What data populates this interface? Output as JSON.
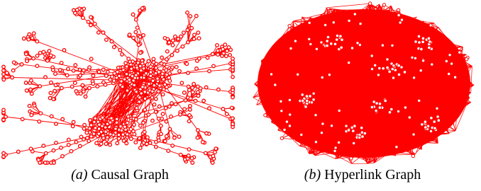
{
  "panels": [
    {
      "label": "(a)",
      "caption": "Causal Graph"
    },
    {
      "label": "(b)",
      "caption": "Hyperlink Graph"
    }
  ]
}
